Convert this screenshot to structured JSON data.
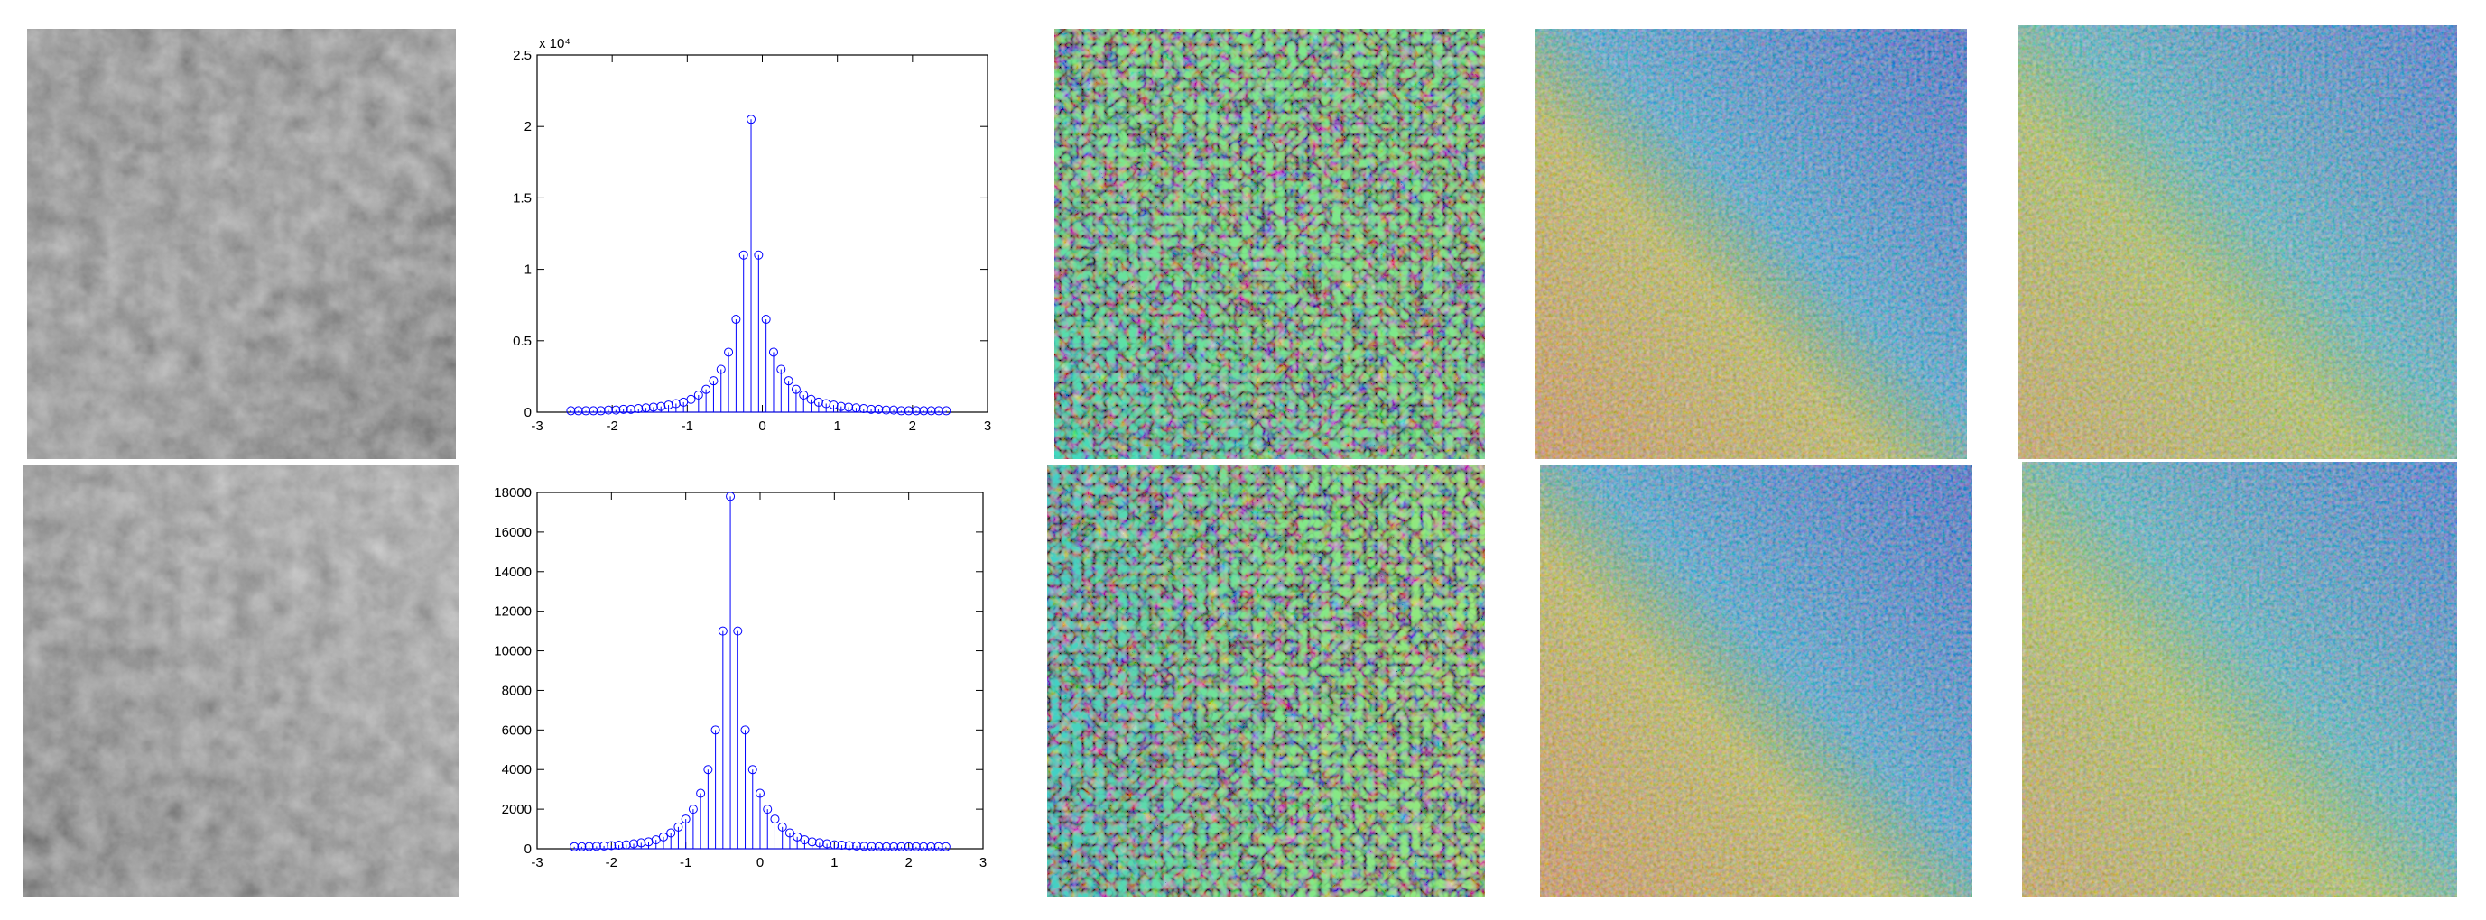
{
  "chart_data": [
    {
      "type": "stem",
      "y_multiplier": "x 10⁴",
      "x": [
        -2.55,
        -2.45,
        -2.35,
        -2.25,
        -2.15,
        -2.05,
        -1.95,
        -1.85,
        -1.75,
        -1.65,
        -1.55,
        -1.45,
        -1.35,
        -1.25,
        -1.15,
        -1.05,
        -0.95,
        -0.85,
        -0.75,
        -0.65,
        -0.55,
        -0.45,
        -0.35,
        -0.25,
        -0.15,
        -0.05,
        0.05,
        0.15,
        0.25,
        0.35,
        0.45,
        0.55,
        0.65,
        0.75,
        0.85,
        0.95,
        1.05,
        1.15,
        1.25,
        1.35,
        1.45,
        1.55,
        1.65,
        1.75,
        1.85,
        1.95,
        2.05,
        2.15,
        2.25,
        2.35,
        2.45
      ],
      "values": [
        0.01,
        0.01,
        0.01,
        0.01,
        0.01,
        0.015,
        0.015,
        0.02,
        0.02,
        0.025,
        0.03,
        0.035,
        0.04,
        0.05,
        0.06,
        0.07,
        0.09,
        0.12,
        0.16,
        0.22,
        0.3,
        0.42,
        0.65,
        1.1,
        2.05,
        1.1,
        0.65,
        0.42,
        0.3,
        0.22,
        0.16,
        0.12,
        0.09,
        0.07,
        0.06,
        0.05,
        0.04,
        0.035,
        0.03,
        0.025,
        0.02,
        0.02,
        0.015,
        0.015,
        0.01,
        0.01,
        0.01,
        0.01,
        0.01,
        0.01,
        0.01
      ],
      "color": "#0000ff",
      "xlim": [
        -3,
        3
      ],
      "xticks": [
        -3,
        -2,
        -1,
        0,
        1,
        2,
        3
      ],
      "ylim": [
        0,
        2.5
      ],
      "yticks": [
        0,
        0.5,
        1,
        1.5,
        2,
        2.5
      ]
    },
    {
      "type": "stem",
      "x": [
        -2.5,
        -2.4,
        -2.3,
        -2.2,
        -2.1,
        -2,
        -1.9,
        -1.8,
        -1.7,
        -1.6,
        -1.5,
        -1.4,
        -1.3,
        -1.2,
        -1.1,
        -1,
        -0.9,
        -0.8,
        -0.7,
        -0.6,
        -0.5,
        -0.4,
        -0.3,
        -0.2,
        -0.1,
        0,
        0.1,
        0.2,
        0.3,
        0.4,
        0.5,
        0.6,
        0.7,
        0.8,
        0.9,
        1,
        1.1,
        1.2,
        1.3,
        1.4,
        1.5,
        1.6,
        1.7,
        1.8,
        1.9,
        2,
        2.1,
        2.2,
        2.3,
        2.4,
        2.5
      ],
      "values": [
        100,
        100,
        110,
        120,
        140,
        160,
        180,
        200,
        250,
        300,
        350,
        450,
        600,
        800,
        1100,
        1500,
        2000,
        2800,
        4000,
        6000,
        11000,
        17800,
        11000,
        6000,
        4000,
        2800,
        2000,
        1500,
        1100,
        800,
        600,
        450,
        350,
        300,
        250,
        200,
        180,
        160,
        140,
        120,
        110,
        100,
        100,
        100,
        100,
        100,
        100,
        100,
        100,
        100,
        100
      ],
      "color": "#0000ff",
      "xlim": [
        -3,
        3
      ],
      "xticks": [
        -3,
        -2,
        -1,
        0,
        1,
        2,
        3
      ],
      "ylim": [
        0,
        18000
      ],
      "yticks": [
        0,
        2000,
        4000,
        6000,
        8000,
        10000,
        12000,
        14000,
        16000,
        18000
      ]
    }
  ]
}
